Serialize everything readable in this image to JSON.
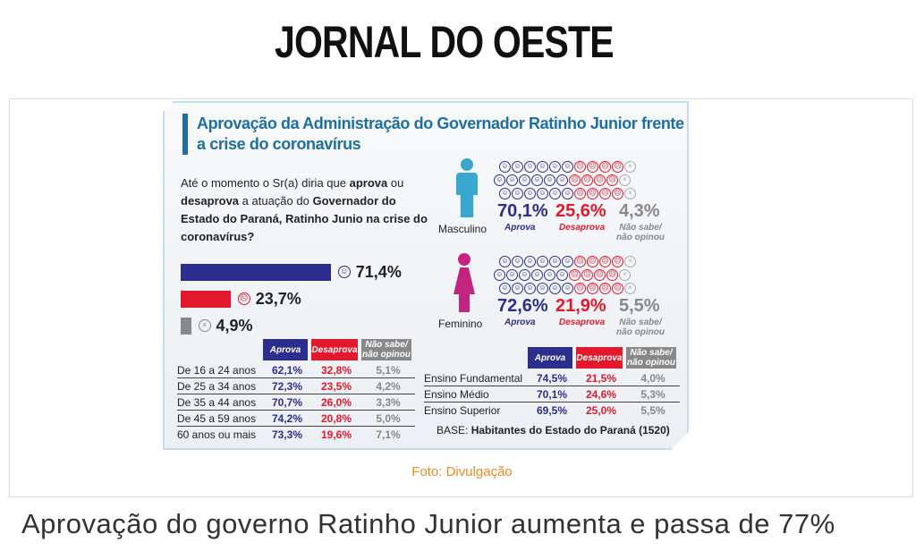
{
  "logo": "JORNAL DO OESTE",
  "infographic": {
    "title": "Aprovação da Administração do Governador Ratinho Junior frente a crise do coronavírus",
    "question_parts": [
      "Até o momento o Sr(a) diria que ",
      "aprova",
      " ou ",
      "desaprova",
      " a atuação do ",
      "Governador do Estado do Paraná, Ratinho Junio na crise do coronavírus?"
    ],
    "overall": [
      {
        "label": "71,4%",
        "value": 71.4
      },
      {
        "label": "23,7%",
        "value": 23.7
      },
      {
        "label": "4,9%",
        "value": 4.9
      }
    ],
    "headers": {
      "aprova": "Aprova",
      "desaprova": "Desaprova",
      "nao_sabe": "Não sabe/ não opinou"
    },
    "age_rows": [
      [
        "De 16 a 24 anos",
        "62,1%",
        "32,8%",
        "5,1%"
      ],
      [
        "De 25 a 34 anos",
        "72,3%",
        "23,5%",
        "4,2%"
      ],
      [
        "De 35 a 44 anos",
        "70,7%",
        "26,0%",
        "3,3%"
      ],
      [
        "De 45 a 59 anos",
        "74,2%",
        "20,8%",
        "5,0%"
      ],
      [
        "60 anos ou mais",
        "73,3%",
        "19,6%",
        "7,1%"
      ]
    ],
    "gender": [
      {
        "label": "Masculino",
        "aprova": "70,1%",
        "desaprova": "25,6%",
        "nao_sabe": "4,3%",
        "color": "#3aa7cf"
      },
      {
        "label": "Feminino",
        "aprova": "72,6%",
        "desaprova": "21,9%",
        "nao_sabe": "5,5%",
        "color": "#c2247f"
      }
    ],
    "edu_rows": [
      [
        "Ensino Fundamental",
        "74,5%",
        "21,5%",
        "4,0%"
      ],
      [
        "Ensino Médio",
        "70,1%",
        "24,6%",
        "5,3%"
      ],
      [
        "Ensino Superior",
        "69,5%",
        "25,0%",
        "5,5%"
      ]
    ],
    "base_label": "BASE:",
    "base_value": "Habitantes do Estado do Paraná (1520)",
    "colors": {
      "aprova": "#2b2e8c",
      "desaprova": "#e3182d",
      "nao_sabe": "#888888"
    }
  },
  "caption": "Foto: Divulgação",
  "headline": "Aprovação do governo Ratinho Junior aumenta e passa de 77%"
}
